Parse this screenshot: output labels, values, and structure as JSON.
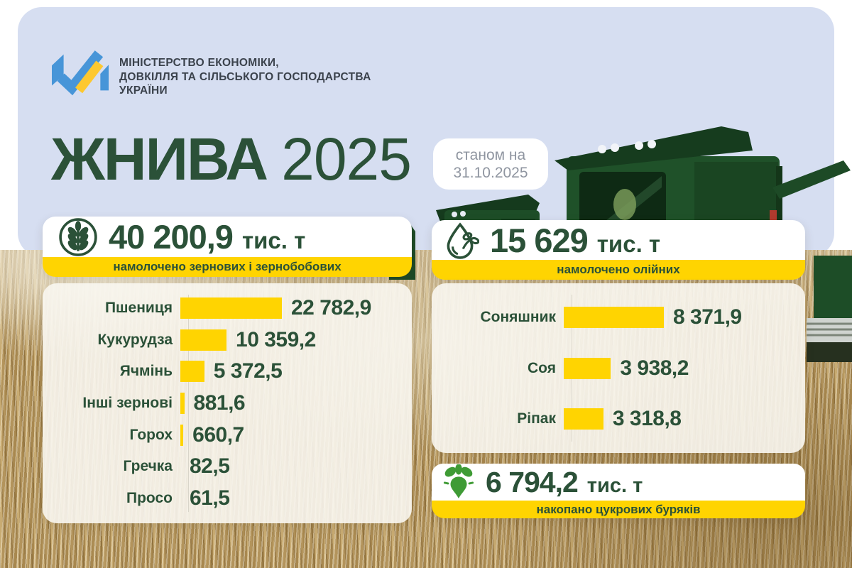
{
  "colors": {
    "green": "#2b5138",
    "yellow": "#ffd401",
    "lavender": "#d6def1",
    "logo_blue": "#4795d8",
    "logo_yellow": "#fdc82f",
    "beet_green": "#3f9b35",
    "badge_gray": "#8f95a0"
  },
  "header": {
    "ministry_lines": [
      "МІНІСТЕРСТВО ЕКОНОМІКИ,",
      "ДОВКІЛЛЯ ТА СІЛЬСЬКОГО ГОСПОДАРСТВА",
      "УКРАЇНИ"
    ],
    "title_main": "ЖНИВА",
    "title_year": "2025",
    "badge_line1": "станом на",
    "badge_line2": "31.10.2025"
  },
  "cards": {
    "grain": {
      "icon": "wheat-icon",
      "total": "40 200,9",
      "unit": "тис. т",
      "caption": "намолочено зернових і зернобобових"
    },
    "oilseed": {
      "icon": "oil-drop-icon",
      "total": "15 629",
      "unit": "тис. т",
      "caption": "намолочено олійних"
    },
    "beet": {
      "icon": "sugar-beet-icon",
      "total": "6 794,2",
      "unit": "тис. т",
      "caption": "накопано цукрових буряків"
    }
  },
  "chart_data": [
    {
      "type": "bar",
      "orientation": "horizontal",
      "title": "намолочено зернових і зернобобових",
      "total_label": "40 200,9 тис. т",
      "unit": "тис. т",
      "categories": [
        "Пшениця",
        "Кукурудза",
        "Ячмінь",
        "Інші зернові",
        "Горох",
        "Гречка",
        "Просо"
      ],
      "values": [
        22782.9,
        10359.2,
        5372.5,
        881.6,
        660.7,
        82.5,
        61.5
      ],
      "display_values": [
        "22 782,9",
        "10 359,2",
        "5 372,5",
        "881,6",
        "660,7",
        "82,5",
        "61,5"
      ],
      "bar_color": "#ffd401",
      "grid": false,
      "legend": false
    },
    {
      "type": "bar",
      "orientation": "horizontal",
      "title": "намолочено олійних",
      "total_label": "15 629 тис. т",
      "unit": "тис. т",
      "categories": [
        "Соняшник",
        "Соя",
        "Ріпак"
      ],
      "values": [
        8371.9,
        3938.2,
        3318.8
      ],
      "display_values": [
        "8 371,9",
        "3 938,2",
        "3 318,8"
      ],
      "bar_color": "#ffd401",
      "grid": false,
      "legend": false
    }
  ]
}
